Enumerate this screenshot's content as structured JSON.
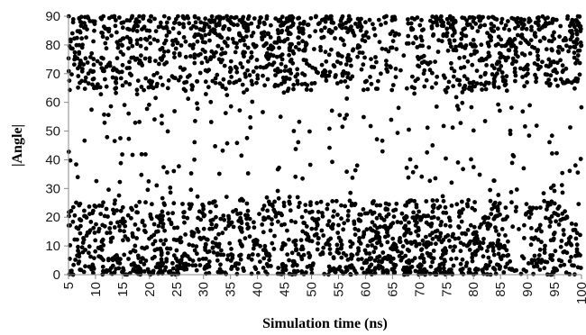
{
  "chart_data": {
    "type": "scatter",
    "title": "",
    "xlabel": "Simulation time (ns)",
    "ylabel": "|Angle|",
    "xlim": [
      5,
      100
    ],
    "ylim": [
      0,
      90
    ],
    "x_ticks": [
      5,
      10,
      15,
      20,
      25,
      30,
      35,
      40,
      45,
      50,
      55,
      60,
      65,
      70,
      75,
      80,
      85,
      90,
      95,
      100
    ],
    "y_ticks": [
      0,
      10,
      20,
      30,
      40,
      50,
      60,
      70,
      80,
      90
    ],
    "x_tick_label_rotation": "vertical",
    "grid": false,
    "legend": "none",
    "marker_color": "#000000",
    "points_note": "Dense scatter of approximately 3000 points; y values cluster bimodally near 0-25 and 65-90, with sparse points between.",
    "density_profile": {
      "regions": [
        {
          "x": [
            5,
            12
          ],
          "high_band": 0.45,
          "low_band": 0.45
        },
        {
          "x": [
            12,
            30
          ],
          "high_band": 0.4,
          "low_band": 0.5
        },
        {
          "x": [
            30,
            45
          ],
          "high_band": 0.5,
          "low_band": 0.4
        },
        {
          "x": [
            45,
            60
          ],
          "high_band": 0.45,
          "low_band": 0.45
        },
        {
          "x": [
            60,
            75
          ],
          "high_band": 0.3,
          "low_band": 0.6
        },
        {
          "x": [
            75,
            85
          ],
          "high_band": 0.45,
          "low_band": 0.45
        },
        {
          "x": [
            85,
            100
          ],
          "high_band": 0.55,
          "low_band": 0.35
        }
      ]
    }
  }
}
